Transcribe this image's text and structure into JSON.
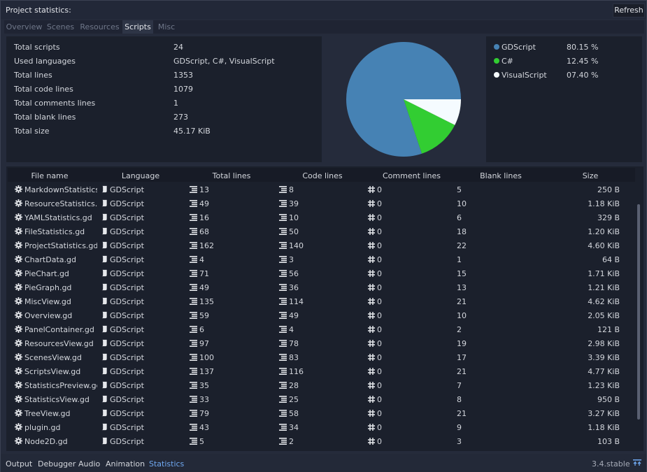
{
  "header": {
    "title": "Project statistics:",
    "refresh_label": "Refresh"
  },
  "tabs": [
    {
      "label": "Overview",
      "active": false
    },
    {
      "label": "Scenes",
      "active": false
    },
    {
      "label": "Resources",
      "active": false
    },
    {
      "label": "Scripts",
      "active": true
    },
    {
      "label": "Misc",
      "active": false
    }
  ],
  "summary": [
    {
      "label": "Total scripts",
      "value": "24"
    },
    {
      "label": "Used languages",
      "value": "GDScript, C#, VisualScript"
    },
    {
      "label": "Total lines",
      "value": "1353"
    },
    {
      "label": "Total code lines",
      "value": "1079"
    },
    {
      "label": "Total comments lines",
      "value": "1"
    },
    {
      "label": "Total blank lines",
      "value": "273"
    },
    {
      "label": "Total size",
      "value": "45.17 KiB"
    }
  ],
  "chart_data": {
    "type": "pie",
    "slices": [
      {
        "label": "GDScript",
        "value": 80.15,
        "percent_text": "80.15 %",
        "color": "#4682b4"
      },
      {
        "label": "C#",
        "value": 12.45,
        "percent_text": "12.45 %",
        "color": "#32cd32"
      },
      {
        "label": "VisualScript",
        "value": 7.4,
        "percent_text": "07.40 %",
        "color": "#f5fbff"
      }
    ]
  },
  "table": {
    "columns": [
      "File name",
      "Language",
      "Total lines",
      "Code lines",
      "Comment lines",
      "Blank lines",
      "Size"
    ],
    "rows": [
      {
        "file": "MarkdownStatistics.g",
        "language": "GDScript",
        "total": "13",
        "code": "8",
        "comment": "0",
        "blank": "5",
        "size": "250 B"
      },
      {
        "file": "ResourceStatistics.gd",
        "language": "GDScript",
        "total": "49",
        "code": "39",
        "comment": "0",
        "blank": "10",
        "size": "1.18 KiB"
      },
      {
        "file": "YAMLStatistics.gd",
        "language": "GDScript",
        "total": "16",
        "code": "10",
        "comment": "0",
        "blank": "6",
        "size": "329 B"
      },
      {
        "file": "FileStatistics.gd",
        "language": "GDScript",
        "total": "68",
        "code": "50",
        "comment": "0",
        "blank": "18",
        "size": "1.20 KiB"
      },
      {
        "file": "ProjectStatistics.gd",
        "language": "GDScript",
        "total": "162",
        "code": "140",
        "comment": "0",
        "blank": "22",
        "size": "4.60 KiB"
      },
      {
        "file": "ChartData.gd",
        "language": "GDScript",
        "total": "4",
        "code": "3",
        "comment": "0",
        "blank": "1",
        "size": "64 B"
      },
      {
        "file": "PieChart.gd",
        "language": "GDScript",
        "total": "71",
        "code": "56",
        "comment": "0",
        "blank": "15",
        "size": "1.71 KiB"
      },
      {
        "file": "PieGraph.gd",
        "language": "GDScript",
        "total": "49",
        "code": "36",
        "comment": "0",
        "blank": "13",
        "size": "1.21 KiB"
      },
      {
        "file": "MiscView.gd",
        "language": "GDScript",
        "total": "135",
        "code": "114",
        "comment": "0",
        "blank": "21",
        "size": "4.62 KiB"
      },
      {
        "file": "Overview.gd",
        "language": "GDScript",
        "total": "59",
        "code": "49",
        "comment": "0",
        "blank": "10",
        "size": "2.05 KiB"
      },
      {
        "file": "PanelContainer.gd",
        "language": "GDScript",
        "total": "6",
        "code": "4",
        "comment": "0",
        "blank": "2",
        "size": "121 B"
      },
      {
        "file": "ResourcesView.gd",
        "language": "GDScript",
        "total": "97",
        "code": "78",
        "comment": "0",
        "blank": "19",
        "size": "2.98 KiB"
      },
      {
        "file": "ScenesView.gd",
        "language": "GDScript",
        "total": "100",
        "code": "83",
        "comment": "0",
        "blank": "17",
        "size": "3.39 KiB"
      },
      {
        "file": "ScriptsView.gd",
        "language": "GDScript",
        "total": "137",
        "code": "116",
        "comment": "0",
        "blank": "21",
        "size": "4.77 KiB"
      },
      {
        "file": "StatisticsPreview.gd",
        "language": "GDScript",
        "total": "35",
        "code": "28",
        "comment": "0",
        "blank": "7",
        "size": "1.23 KiB"
      },
      {
        "file": "StatisticsView.gd",
        "language": "GDScript",
        "total": "33",
        "code": "25",
        "comment": "0",
        "blank": "8",
        "size": "950 B"
      },
      {
        "file": "TreeView.gd",
        "language": "GDScript",
        "total": "79",
        "code": "58",
        "comment": "0",
        "blank": "21",
        "size": "3.27 KiB"
      },
      {
        "file": "plugin.gd",
        "language": "GDScript",
        "total": "43",
        "code": "34",
        "comment": "0",
        "blank": "9",
        "size": "1.18 KiB"
      },
      {
        "file": "Node2D.gd",
        "language": "GDScript",
        "total": "5",
        "code": "2",
        "comment": "0",
        "blank": "3",
        "size": "103 B"
      }
    ]
  },
  "bottom_tabs": [
    {
      "label": "Output",
      "active": false
    },
    {
      "label": "Debugger",
      "active": false
    },
    {
      "label": "Audio",
      "active": false
    },
    {
      "label": "Animation",
      "active": false
    },
    {
      "label": "Statistics",
      "active": true
    }
  ],
  "version": "3.4.stable",
  "icons": {
    "file": "gear-icon",
    "language": "script-icon",
    "lines": "lines-icon",
    "comment": "hash-icon",
    "pin": "pin-icon"
  },
  "colors": {
    "accent": "#6fa8f0"
  }
}
